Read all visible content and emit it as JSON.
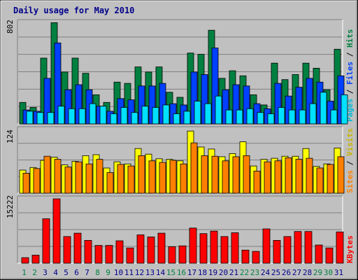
{
  "chart_data": [
    {
      "type": "bar",
      "panel": "hits-files-pages",
      "title": "Daily usage for May 2010",
      "y_label_max": "802",
      "ylim": [
        0,
        802
      ],
      "categories": [
        "1",
        "2",
        "3",
        "4",
        "5",
        "6",
        "7",
        "8",
        "9",
        "10",
        "11",
        "12",
        "13",
        "14",
        "15",
        "16",
        "17",
        "18",
        "19",
        "20",
        "21",
        "22",
        "23",
        "24",
        "25",
        "26",
        "27",
        "28",
        "29",
        "30",
        "31"
      ],
      "weekend_days": [
        "1",
        "2",
        "8",
        "9",
        "15",
        "16",
        "22",
        "23",
        "29",
        "30"
      ],
      "series": [
        {
          "name": "Hits",
          "color": "#008040",
          "values": [
            170,
            130,
            520,
            800,
            410,
            520,
            400,
            230,
            170,
            330,
            320,
            450,
            410,
            450,
            250,
            210,
            560,
            550,
            740,
            360,
            420,
            380,
            230,
            150,
            480,
            350,
            390,
            480,
            440,
            270,
            590
          ]
        },
        {
          "name": "Files",
          "color": "#0040ff",
          "values": [
            110,
            100,
            360,
            640,
            270,
            310,
            270,
            140,
            100,
            200,
            190,
            300,
            300,
            320,
            160,
            150,
            410,
            390,
            600,
            270,
            310,
            300,
            160,
            120,
            320,
            220,
            290,
            360,
            330,
            180,
            380
          ]
        },
        {
          "name": "Pages",
          "color": "#00e0ff",
          "values": [
            100,
            90,
            90,
            140,
            120,
            120,
            160,
            140,
            80,
            130,
            90,
            140,
            130,
            150,
            80,
            100,
            180,
            160,
            220,
            110,
            110,
            120,
            90,
            80,
            130,
            110,
            110,
            160,
            250,
            110,
            230
          ]
        }
      ]
    },
    {
      "type": "bar",
      "panel": "visits-sites",
      "y_label_max": "124",
      "ylim": [
        0,
        124
      ],
      "categories": [
        "1",
        "2",
        "3",
        "4",
        "5",
        "6",
        "7",
        "8",
        "9",
        "10",
        "11",
        "12",
        "13",
        "14",
        "15",
        "16",
        "17",
        "18",
        "19",
        "20",
        "21",
        "22",
        "23",
        "24",
        "25",
        "26",
        "27",
        "28",
        "29",
        "30",
        "31"
      ],
      "series": [
        {
          "name": "Visits",
          "color": "#ffff00",
          "values": [
            45,
            50,
            64,
            70,
            55,
            62,
            73,
            75,
            49,
            61,
            57,
            87,
            76,
            67,
            66,
            63,
            121,
            90,
            86,
            71,
            77,
            100,
            53,
            66,
            68,
            72,
            72,
            87,
            52,
            57,
            88
          ]
        },
        {
          "name": "Sites",
          "color": "#ff8000",
          "values": [
            39,
            48,
            72,
            66,
            51,
            61,
            57,
            66,
            40,
            56,
            53,
            73,
            63,
            60,
            64,
            57,
            98,
            73,
            72,
            63,
            71,
            73,
            43,
            61,
            63,
            69,
            66,
            68,
            49,
            56,
            71
          ]
        }
      ]
    },
    {
      "type": "bar",
      "panel": "kbytes",
      "y_label_max": "15222",
      "ylim": [
        0,
        15222
      ],
      "categories": [
        "1",
        "2",
        "3",
        "4",
        "5",
        "6",
        "7",
        "8",
        "9",
        "10",
        "11",
        "12",
        "13",
        "14",
        "15",
        "16",
        "17",
        "18",
        "19",
        "20",
        "21",
        "22",
        "23",
        "24",
        "25",
        "26",
        "27",
        "28",
        "29",
        "30",
        "31"
      ],
      "series": [
        {
          "name": "KBytes",
          "color": "#ff0000",
          "values": [
            1300,
            1900,
            10500,
            15222,
            6300,
            7100,
            5400,
            4200,
            4200,
            5300,
            3600,
            6700,
            6200,
            7100,
            3900,
            4100,
            8300,
            7000,
            7600,
            6300,
            7200,
            3100,
            2800,
            8100,
            5400,
            6300,
            7500,
            7500,
            4300,
            3600,
            7400
          ]
        }
      ]
    }
  ]
}
